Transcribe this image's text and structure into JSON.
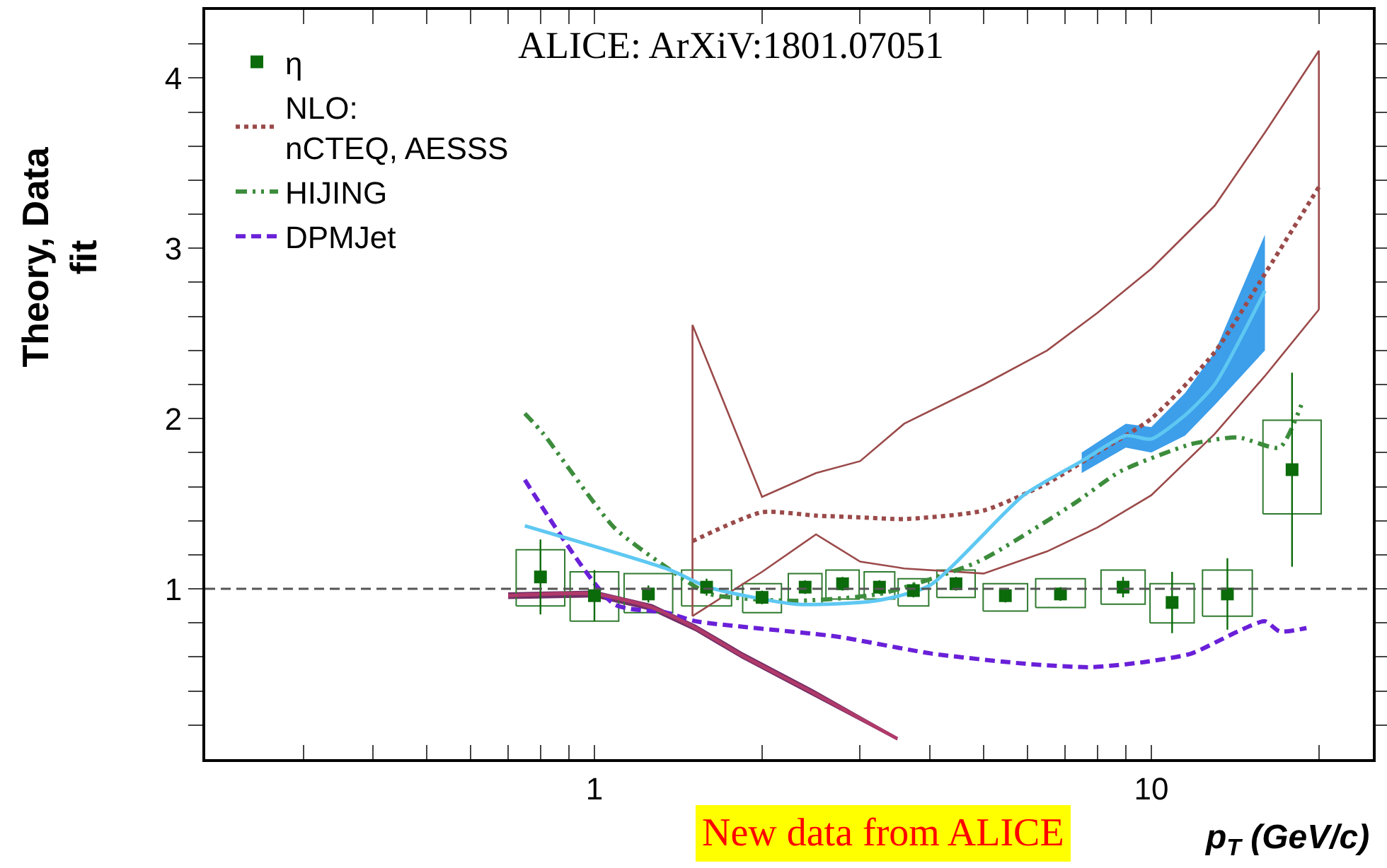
{
  "chart_data": {
    "type": "line",
    "xlabel": "p$_{T}$ (GeV/c)",
    "ylabel": "Theory, Data\nfit",
    "log": "x",
    "xlim": [
      0.2,
      25
    ],
    "ylim": [
      0,
      4.4
    ],
    "xticks": [
      {
        "value": 0.3,
        "label": null
      },
      {
        "value": 0.4,
        "label": null
      },
      {
        "value": 0.5,
        "label": null
      },
      {
        "value": 0.6,
        "label": null
      },
      {
        "value": 0.7,
        "label": null
      },
      {
        "value": 0.8,
        "label": null
      },
      {
        "value": 0.9,
        "label": null
      },
      1,
      {
        "value": 2,
        "label": null
      },
      {
        "value": 3,
        "label": null
      },
      {
        "value": 4,
        "label": null
      },
      {
        "value": 5,
        "label": null
      },
      {
        "value": 6,
        "label": null
      },
      {
        "value": 7,
        "label": null
      },
      {
        "value": 8,
        "label": null
      },
      {
        "value": 9,
        "label": null
      },
      10,
      {
        "value": 20,
        "label": null
      }
    ],
    "yticks": [
      {
        "value": 0.2,
        "label": null
      },
      {
        "value": 0.4,
        "label": null
      },
      {
        "value": 0.6,
        "label": null
      },
      {
        "value": 0.8,
        "label": null
      },
      1,
      {
        "value": 1.2,
        "label": null
      },
      {
        "value": 1.4,
        "label": null
      },
      {
        "value": 1.6,
        "label": null
      },
      {
        "value": 1.8,
        "label": null
      },
      2,
      {
        "value": 2.2,
        "label": null
      },
      {
        "value": 2.4,
        "label": null
      },
      {
        "value": 2.6,
        "label": null
      },
      {
        "value": 2.8,
        "label": null
      },
      3,
      {
        "value": 3.2,
        "label": null
      },
      {
        "value": 3.4,
        "label": null
      },
      {
        "value": 3.6,
        "label": null
      },
      {
        "value": 3.8,
        "label": null
      },
      4,
      {
        "value": 4.2,
        "label": null
      }
    ],
    "grid": false,
    "legend": "top left",
    "ref_lines": [
      {
        "axis": "y",
        "value": 1,
        "color": "#555555",
        "line_style": "dashed"
      }
    ],
    "annotations": [
      "ALICE: ArXiV:1801.07051",
      "New data from ALICE"
    ],
    "series": [
      {
        "type": "bar",
        "color": "#2f7a2f",
        "x": [
          0.8,
          1.0,
          1.25,
          1.59,
          2.0,
          2.39,
          2.79,
          3.25,
          3.74,
          4.46,
          5.47,
          6.87,
          8.9,
          10.9,
          13.7,
          17.9
        ],
        "base": [
          0.9,
          0.81,
          0.86,
          0.9,
          0.86,
          0.91,
          0.94,
          0.94,
          0.9,
          0.95,
          0.87,
          0.89,
          0.91,
          0.8,
          0.84,
          1.44
        ],
        "values": [
          0.33,
          0.29,
          0.23,
          0.21,
          0.17,
          0.18,
          0.17,
          0.16,
          0.16,
          0.16,
          0.16,
          0.17,
          0.2,
          0.23,
          0.27,
          0.55
        ]
      },
      {
        "color": "#9b4a4a",
        "line_style": "dotted",
        "name": "NLO:\nnCTEQ, AESSS",
        "x": [
          1.5,
          2,
          2.5,
          3,
          3.6,
          5,
          6.5,
          8,
          10,
          13,
          16,
          20
        ],
        "values": [
          1.28,
          1.45,
          1.43,
          1.42,
          1.41,
          1.46,
          1.62,
          1.8,
          2.0,
          2.39,
          2.85,
          3.36
        ]
      },
      {
        "color": "#9b4a4a",
        "line_style": "solid",
        "x": [
          1.5,
          2,
          2.5,
          3,
          3.6,
          5,
          6.5,
          8,
          10,
          13,
          16,
          20
        ],
        "values": [
          0.84,
          1.1,
          1.32,
          1.16,
          1.12,
          1.09,
          1.22,
          1.36,
          1.55,
          1.91,
          2.25,
          2.64
        ]
      },
      {
        "color": "#9b4a4a",
        "line_style": "solid",
        "x": [
          1.5,
          1.5,
          2,
          2.5,
          3,
          3.6,
          5,
          6.5,
          8,
          10,
          13,
          16,
          20,
          20
        ],
        "values": [
          0.84,
          2.55,
          1.54,
          1.68,
          1.75,
          1.97,
          2.2,
          2.4,
          2.62,
          2.88,
          3.25,
          3.68,
          4.16,
          2.64
        ]
      },
      {
        "color": "#3c8c3c",
        "line_style": "dashdot",
        "name": "HIJING",
        "x": [
          0.75,
          0.81,
          1.085,
          1.37,
          1.61,
          2.28,
          3.25,
          4.89,
          7.26,
          8.8,
          11.8,
          14.3,
          17.0,
          18.6
        ],
        "values": [
          2.03,
          1.91,
          1.36,
          1.11,
          0.97,
          0.93,
          0.97,
          1.16,
          1.5,
          1.69,
          1.85,
          1.89,
          1.83,
          2.08
        ]
      },
      {
        "color": "#6a20d8",
        "line_style": "dashed",
        "name": "DPMJet",
        "x": [
          0.75,
          1.085,
          1.35,
          1.52,
          2.72,
          4.03,
          5.95,
          7.8,
          9.7,
          11.8,
          14.3,
          16.0,
          17.0,
          19.0
        ],
        "values": [
          1.64,
          0.91,
          0.86,
          0.81,
          0.72,
          0.62,
          0.56,
          0.54,
          0.57,
          0.62,
          0.75,
          0.81,
          0.75,
          0.77
        ]
      },
      {
        "color": "#b03a6a",
        "line_style": "solid",
        "x": [
          0.7,
          1.0,
          1.27,
          1.52,
          1.84,
          2.47,
          3.5
        ],
        "values": [
          0.96,
          0.97,
          0.89,
          0.77,
          0.61,
          0.39,
          0.12
        ],
        "lower": [
          0.94,
          0.95,
          0.87,
          0.75,
          0.59,
          0.37,
          0.11
        ],
        "upper": [
          0.98,
          0.99,
          0.91,
          0.79,
          0.63,
          0.41,
          0.13
        ]
      },
      {
        "color": "#5ec8f2",
        "line_style": "solid",
        "x": [
          0.75,
          1.37,
          1.6,
          2.3,
          3.2,
          4.0,
          5.9,
          7.5,
          9,
          10,
          11.5,
          13,
          16
        ],
        "values": [
          1.37,
          1.11,
          1.01,
          0.91,
          0.93,
          1.02,
          1.55,
          1.75,
          1.9,
          1.88,
          2.02,
          2.2,
          2.75
        ],
        "lower": [
          null,
          null,
          null,
          null,
          null,
          null,
          null,
          1.68,
          1.83,
          1.8,
          1.9,
          2.08,
          2.4
        ],
        "upper": [
          null,
          null,
          null,
          null,
          null,
          null,
          null,
          1.8,
          1.97,
          1.95,
          2.15,
          2.39,
          3.08
        ]
      },
      {
        "type": "scatter",
        "color": "#0b6b0b",
        "marker": "square",
        "name": "η",
        "x": [
          0.8,
          1.0,
          1.25,
          1.59,
          2.0,
          2.39,
          2.79,
          3.25,
          3.74,
          4.46,
          5.47,
          6.87,
          8.9,
          10.9,
          13.7,
          17.9
        ],
        "values": [
          1.07,
          0.96,
          0.97,
          1.01,
          0.95,
          1.01,
          1.03,
          1.01,
          0.99,
          1.03,
          0.96,
          0.97,
          1.01,
          0.92,
          0.97,
          1.7
        ],
        "errors": [
          0.22,
          0.15,
          0.05,
          0.05,
          0.04,
          0.04,
          0.04,
          0.04,
          0.04,
          0.04,
          0.04,
          0.04,
          0.06,
          0.18,
          0.21,
          0.57
        ]
      }
    ]
  }
}
